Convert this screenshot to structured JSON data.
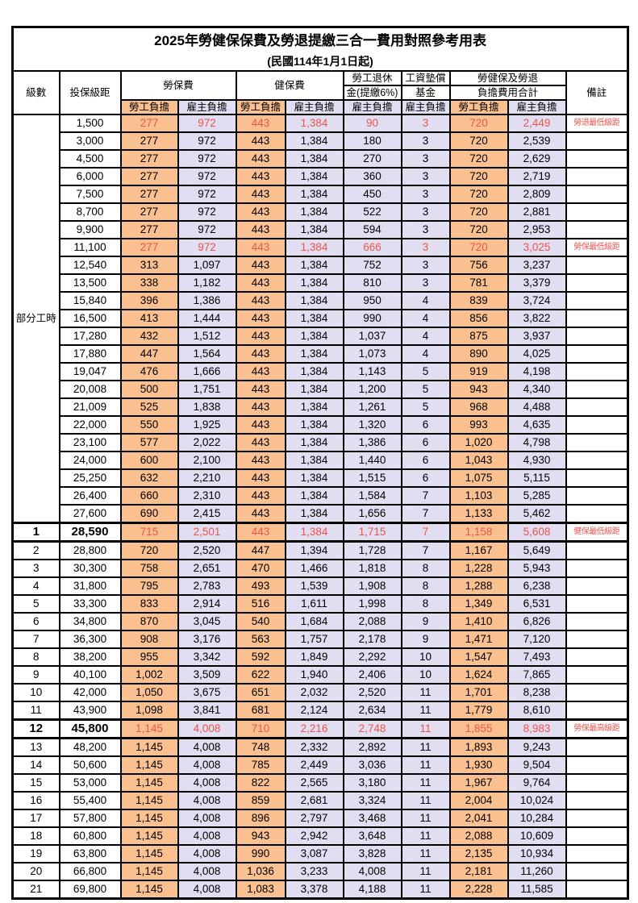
{
  "title": "2025年勞健保保費及勞退提繳三合一費用對照參考用表",
  "subtitle": "(民國114年1月1日起)",
  "colors": {
    "employee_bg": "#FAC08F",
    "employer_bg": "#E1DEF2",
    "highlight_text": "#EE544B",
    "border": "#000000"
  },
  "table": {
    "headers": {
      "level": "級數",
      "bracket": "投保級距",
      "labor": "勞保費",
      "health": "健保費",
      "pension_line1": "勞工退休",
      "pension_line2": "金(提繳6%)",
      "fund_line1": "工資墊償",
      "fund_line2": "基金",
      "total_line1": "勞健保及勞退",
      "total_line2": "負擔費用合計",
      "note": "備註",
      "employee": "勞工負擔",
      "employer": "雇主負擔"
    },
    "part_time_label": "部分工時",
    "part_time_rowspan": 23,
    "rows": [
      {
        "level": "",
        "bracket": "1,500",
        "values": [
          "277",
          "972",
          "443",
          "1,384",
          "90",
          "3",
          "720",
          "2,449"
        ],
        "note": "勞退最低級距",
        "red": true,
        "bold": false
      },
      {
        "level": "",
        "bracket": "3,000",
        "values": [
          "277",
          "972",
          "443",
          "1,384",
          "180",
          "3",
          "720",
          "2,539"
        ],
        "note": "",
        "red": false,
        "bold": false
      },
      {
        "level": "",
        "bracket": "4,500",
        "values": [
          "277",
          "972",
          "443",
          "1,384",
          "270",
          "3",
          "720",
          "2,629"
        ],
        "note": "",
        "red": false,
        "bold": false
      },
      {
        "level": "",
        "bracket": "6,000",
        "values": [
          "277",
          "972",
          "443",
          "1,384",
          "360",
          "3",
          "720",
          "2,719"
        ],
        "note": "",
        "red": false,
        "bold": false
      },
      {
        "level": "",
        "bracket": "7,500",
        "values": [
          "277",
          "972",
          "443",
          "1,384",
          "450",
          "3",
          "720",
          "2,809"
        ],
        "note": "",
        "red": false,
        "bold": false
      },
      {
        "level": "",
        "bracket": "8,700",
        "values": [
          "277",
          "972",
          "443",
          "1,384",
          "522",
          "3",
          "720",
          "2,881"
        ],
        "note": "",
        "red": false,
        "bold": false
      },
      {
        "level": "",
        "bracket": "9,900",
        "values": [
          "277",
          "972",
          "443",
          "1,384",
          "594",
          "3",
          "720",
          "2,953"
        ],
        "note": "",
        "red": false,
        "bold": false
      },
      {
        "level": "",
        "bracket": "11,100",
        "values": [
          "277",
          "972",
          "443",
          "1,384",
          "666",
          "3",
          "720",
          "3,025"
        ],
        "note": "勞保最低級距",
        "red": true,
        "bold": false
      },
      {
        "level": "",
        "bracket": "12,540",
        "values": [
          "313",
          "1,097",
          "443",
          "1,384",
          "752",
          "3",
          "756",
          "3,237"
        ],
        "note": "",
        "red": false,
        "bold": false
      },
      {
        "level": "",
        "bracket": "13,500",
        "values": [
          "338",
          "1,182",
          "443",
          "1,384",
          "810",
          "3",
          "781",
          "3,379"
        ],
        "note": "",
        "red": false,
        "bold": false
      },
      {
        "level": "",
        "bracket": "15,840",
        "values": [
          "396",
          "1,386",
          "443",
          "1,384",
          "950",
          "4",
          "839",
          "3,724"
        ],
        "note": "",
        "red": false,
        "bold": false
      },
      {
        "level": "",
        "bracket": "16,500",
        "values": [
          "413",
          "1,444",
          "443",
          "1,384",
          "990",
          "4",
          "856",
          "3,822"
        ],
        "note": "",
        "red": false,
        "bold": false
      },
      {
        "level": "",
        "bracket": "17,280",
        "values": [
          "432",
          "1,512",
          "443",
          "1,384",
          "1,037",
          "4",
          "875",
          "3,937"
        ],
        "note": "",
        "red": false,
        "bold": false
      },
      {
        "level": "",
        "bracket": "17,880",
        "values": [
          "447",
          "1,564",
          "443",
          "1,384",
          "1,073",
          "4",
          "890",
          "4,025"
        ],
        "note": "",
        "red": false,
        "bold": false
      },
      {
        "level": "",
        "bracket": "19,047",
        "values": [
          "476",
          "1,666",
          "443",
          "1,384",
          "1,143",
          "5",
          "919",
          "4,198"
        ],
        "note": "",
        "red": false,
        "bold": false
      },
      {
        "level": "",
        "bracket": "20,008",
        "values": [
          "500",
          "1,751",
          "443",
          "1,384",
          "1,200",
          "5",
          "943",
          "4,340"
        ],
        "note": "",
        "red": false,
        "bold": false
      },
      {
        "level": "",
        "bracket": "21,009",
        "values": [
          "525",
          "1,838",
          "443",
          "1,384",
          "1,261",
          "5",
          "968",
          "4,488"
        ],
        "note": "",
        "red": false,
        "bold": false
      },
      {
        "level": "",
        "bracket": "22,000",
        "values": [
          "550",
          "1,925",
          "443",
          "1,384",
          "1,320",
          "6",
          "993",
          "4,635"
        ],
        "note": "",
        "red": false,
        "bold": false
      },
      {
        "level": "",
        "bracket": "23,100",
        "values": [
          "577",
          "2,022",
          "443",
          "1,384",
          "1,386",
          "6",
          "1,020",
          "4,798"
        ],
        "note": "",
        "red": false,
        "bold": false
      },
      {
        "level": "",
        "bracket": "24,000",
        "values": [
          "600",
          "2,100",
          "443",
          "1,384",
          "1,440",
          "6",
          "1,043",
          "4,930"
        ],
        "note": "",
        "red": false,
        "bold": false
      },
      {
        "level": "",
        "bracket": "25,250",
        "values": [
          "632",
          "2,210",
          "443",
          "1,384",
          "1,515",
          "6",
          "1,075",
          "5,115"
        ],
        "note": "",
        "red": false,
        "bold": false
      },
      {
        "level": "",
        "bracket": "26,400",
        "values": [
          "660",
          "2,310",
          "443",
          "1,384",
          "1,584",
          "7",
          "1,103",
          "5,285"
        ],
        "note": "",
        "red": false,
        "bold": false
      },
      {
        "level": "",
        "bracket": "27,600",
        "values": [
          "690",
          "2,415",
          "443",
          "1,384",
          "1,656",
          "7",
          "1,133",
          "5,462"
        ],
        "note": "",
        "red": false,
        "bold": false
      },
      {
        "level": "1",
        "bracket": "28,590",
        "values": [
          "715",
          "2,501",
          "443",
          "1,384",
          "1,715",
          "7",
          "1,158",
          "5,608"
        ],
        "note": "健保最低級距",
        "red": true,
        "bold": true
      },
      {
        "level": "2",
        "bracket": "28,800",
        "values": [
          "720",
          "2,520",
          "447",
          "1,394",
          "1,728",
          "7",
          "1,167",
          "5,649"
        ],
        "note": "",
        "red": false,
        "bold": false
      },
      {
        "level": "3",
        "bracket": "30,300",
        "values": [
          "758",
          "2,651",
          "470",
          "1,466",
          "1,818",
          "8",
          "1,228",
          "5,943"
        ],
        "note": "",
        "red": false,
        "bold": false
      },
      {
        "level": "4",
        "bracket": "31,800",
        "values": [
          "795",
          "2,783",
          "493",
          "1,539",
          "1,908",
          "8",
          "1,288",
          "6,238"
        ],
        "note": "",
        "red": false,
        "bold": false
      },
      {
        "level": "5",
        "bracket": "33,300",
        "values": [
          "833",
          "2,914",
          "516",
          "1,611",
          "1,998",
          "8",
          "1,349",
          "6,531"
        ],
        "note": "",
        "red": false,
        "bold": false
      },
      {
        "level": "6",
        "bracket": "34,800",
        "values": [
          "870",
          "3,045",
          "540",
          "1,684",
          "2,088",
          "9",
          "1,410",
          "6,826"
        ],
        "note": "",
        "red": false,
        "bold": false
      },
      {
        "level": "7",
        "bracket": "36,300",
        "values": [
          "908",
          "3,176",
          "563",
          "1,757",
          "2,178",
          "9",
          "1,471",
          "7,120"
        ],
        "note": "",
        "red": false,
        "bold": false
      },
      {
        "level": "8",
        "bracket": "38,200",
        "values": [
          "955",
          "3,342",
          "592",
          "1,849",
          "2,292",
          "10",
          "1,547",
          "7,493"
        ],
        "note": "",
        "red": false,
        "bold": false
      },
      {
        "level": "9",
        "bracket": "40,100",
        "values": [
          "1,002",
          "3,509",
          "622",
          "1,940",
          "2,406",
          "10",
          "1,624",
          "7,865"
        ],
        "note": "",
        "red": false,
        "bold": false
      },
      {
        "level": "10",
        "bracket": "42,000",
        "values": [
          "1,050",
          "3,675",
          "651",
          "2,032",
          "2,520",
          "11",
          "1,701",
          "8,238"
        ],
        "note": "",
        "red": false,
        "bold": false
      },
      {
        "level": "11",
        "bracket": "43,900",
        "values": [
          "1,098",
          "3,841",
          "681",
          "2,124",
          "2,634",
          "11",
          "1,779",
          "8,610"
        ],
        "note": "",
        "red": false,
        "bold": false
      },
      {
        "level": "12",
        "bracket": "45,800",
        "values": [
          "1,145",
          "4,008",
          "710",
          "2,216",
          "2,748",
          "11",
          "1,855",
          "8,983"
        ],
        "note": "勞保最高級距",
        "red": true,
        "bold": true
      },
      {
        "level": "13",
        "bracket": "48,200",
        "values": [
          "1,145",
          "4,008",
          "748",
          "2,332",
          "2,892",
          "11",
          "1,893",
          "9,243"
        ],
        "note": "",
        "red": false,
        "bold": false
      },
      {
        "level": "14",
        "bracket": "50,600",
        "values": [
          "1,145",
          "4,008",
          "785",
          "2,449",
          "3,036",
          "11",
          "1,930",
          "9,504"
        ],
        "note": "",
        "red": false,
        "bold": false
      },
      {
        "level": "15",
        "bracket": "53,000",
        "values": [
          "1,145",
          "4,008",
          "822",
          "2,565",
          "3,180",
          "11",
          "1,967",
          "9,764"
        ],
        "note": "",
        "red": false,
        "bold": false
      },
      {
        "level": "16",
        "bracket": "55,400",
        "values": [
          "1,145",
          "4,008",
          "859",
          "2,681",
          "3,324",
          "11",
          "2,004",
          "10,024"
        ],
        "note": "",
        "red": false,
        "bold": false
      },
      {
        "level": "17",
        "bracket": "57,800",
        "values": [
          "1,145",
          "4,008",
          "896",
          "2,797",
          "3,468",
          "11",
          "2,041",
          "10,284"
        ],
        "note": "",
        "red": false,
        "bold": false
      },
      {
        "level": "18",
        "bracket": "60,800",
        "values": [
          "1,145",
          "4,008",
          "943",
          "2,942",
          "3,648",
          "11",
          "2,088",
          "10,609"
        ],
        "note": "",
        "red": false,
        "bold": false
      },
      {
        "level": "19",
        "bracket": "63,800",
        "values": [
          "1,145",
          "4,008",
          "990",
          "3,087",
          "3,828",
          "11",
          "2,135",
          "10,934"
        ],
        "note": "",
        "red": false,
        "bold": false
      },
      {
        "level": "20",
        "bracket": "66,800",
        "values": [
          "1,145",
          "4,008",
          "1,036",
          "3,233",
          "4,008",
          "11",
          "2,181",
          "11,260"
        ],
        "note": "",
        "red": false,
        "bold": false
      },
      {
        "level": "21",
        "bracket": "69,800",
        "values": [
          "1,145",
          "4,008",
          "1,083",
          "3,378",
          "4,188",
          "11",
          "2,228",
          "11,585"
        ],
        "note": "",
        "red": false,
        "bold": false
      }
    ]
  }
}
